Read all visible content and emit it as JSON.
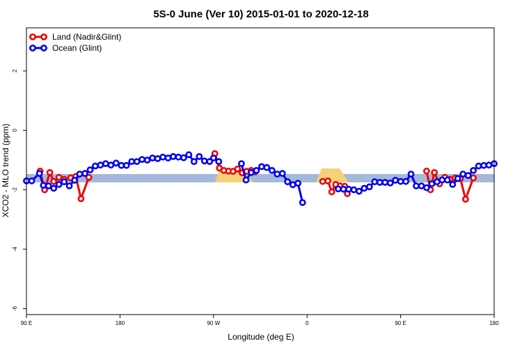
{
  "chart_data": {
    "type": "line",
    "title": "5S-0 June (Ver 10)   2015-01-01 to 2020-12-18",
    "xlabel": "Longitude (deg E)",
    "ylabel": "XCO2 - MLO trend (ppm)",
    "xlim": [
      90,
      450
    ],
    "ylim": [
      -6.2,
      3.45
    ],
    "x_ticks": [
      {
        "value": 90,
        "label": "90 E"
      },
      {
        "value": 162,
        "label": "180"
      },
      {
        "value": 234,
        "label": "90 W"
      },
      {
        "value": 306,
        "label": "0"
      },
      {
        "value": 378,
        "label": "90 E"
      },
      {
        "value": 450,
        "label": "180"
      }
    ],
    "y_ticks": [
      {
        "value": 2,
        "label": "2"
      },
      {
        "value": 0,
        "label": "0"
      },
      {
        "value": -2,
        "label": "-2"
      },
      {
        "value": -4,
        "label": "-4"
      },
      {
        "value": -6,
        "label": "-6"
      }
    ],
    "band": {
      "y_low": -1.75,
      "y_high": -1.47,
      "color": "#a4b9d9"
    },
    "land_patches": [
      {
        "x_start": 235,
        "x_peak_start": 239,
        "x_peak_end": 255,
        "x_end": 265,
        "color": "#f5d27a"
      },
      {
        "x_start": 313,
        "x_peak_start": 317,
        "x_peak_end": 331,
        "x_end": 338,
        "color": "#f5d27a"
      }
    ],
    "legend": {
      "position": "top-left"
    },
    "series": [
      {
        "name": "Land (Nadir&Glint)",
        "color": "#ee0000",
        "segments": [
          [
            [
              100.5,
              -1.37
            ],
            [
              104,
              -2.0
            ],
            [
              108,
              -1.42
            ],
            [
              111,
              -1.72
            ],
            [
              115,
              -1.58
            ],
            [
              119,
              -1.65
            ],
            [
              124,
              -1.6
            ],
            [
              128,
              -1.55
            ],
            [
              132,
              -2.3
            ],
            [
              138,
              -1.58
            ]
          ],
          [
            [
              235,
              -0.78
            ],
            [
              238.5,
              -1.27
            ],
            [
              242,
              -1.35
            ],
            [
              245.5,
              -1.37
            ],
            [
              249,
              -1.38
            ],
            [
              252.5,
              -1.3
            ],
            [
              256,
              -1.43
            ],
            [
              259.5,
              -1.38
            ],
            [
              263,
              -1.35
            ],
            [
              266,
              -1.4
            ]
          ],
          [
            [
              318,
              -1.72
            ],
            [
              322,
              -1.7
            ],
            [
              325,
              -2.07
            ],
            [
              328,
              -1.82
            ],
            [
              331.5,
              -1.87
            ],
            [
              335,
              -1.88
            ],
            [
              337,
              -2.13
            ]
          ],
          [
            [
              398,
              -1.37
            ],
            [
              401,
              -2.0
            ],
            [
              404,
              -1.42
            ],
            [
              408,
              -1.8
            ],
            [
              412,
              -1.58
            ],
            [
              416,
              -1.65
            ],
            [
              420,
              -1.6
            ],
            [
              424,
              -1.62
            ],
            [
              428,
              -2.32
            ],
            [
              434,
              -1.6
            ]
          ]
        ]
      },
      {
        "name": "Ocean (Glint)",
        "color": "#0000ee",
        "segments": [
          [
            [
              90,
              -1.7
            ],
            [
              94,
              -1.7
            ],
            [
              100,
              -1.45
            ],
            [
              103,
              -1.85
            ],
            [
              107,
              -1.87
            ],
            [
              111,
              -1.95
            ],
            [
              115,
              -1.82
            ],
            [
              119,
              -1.73
            ],
            [
              123,
              -1.87
            ],
            [
              127,
              -1.68
            ],
            [
              131,
              -1.47
            ],
            [
              135,
              -1.45
            ],
            [
              139,
              -1.33
            ],
            [
              143,
              -1.2
            ],
            [
              147,
              -1.17
            ],
            [
              151,
              -1.12
            ],
            [
              155,
              -1.17
            ],
            [
              159,
              -1.1
            ],
            [
              163,
              -1.18
            ],
            [
              167,
              -1.18
            ],
            [
              171,
              -1.05
            ],
            [
              175,
              -1.05
            ],
            [
              179,
              -0.98
            ],
            [
              183,
              -1.0
            ],
            [
              187,
              -0.93
            ],
            [
              191,
              -0.95
            ],
            [
              195,
              -0.9
            ],
            [
              199,
              -0.93
            ],
            [
              203,
              -0.88
            ],
            [
              207,
              -0.9
            ],
            [
              211,
              -0.92
            ],
            [
              215,
              -0.82
            ],
            [
              219,
              -1.05
            ],
            [
              223,
              -0.88
            ],
            [
              227,
              -1.03
            ],
            [
              231,
              -1.05
            ],
            [
              234,
              -0.93
            ],
            [
              238,
              -1.05
            ]
          ],
          [
            [
              255.5,
              -1.12
            ],
            [
              259,
              -1.67
            ],
            [
              263,
              -1.42
            ],
            [
              267,
              -1.35
            ],
            [
              271,
              -1.22
            ],
            [
              275,
              -1.25
            ],
            [
              279,
              -1.35
            ],
            [
              283,
              -1.47
            ],
            [
              287,
              -1.45
            ],
            [
              291,
              -1.73
            ],
            [
              295,
              -1.83
            ],
            [
              299,
              -1.78
            ],
            [
              302.5,
              -2.43
            ]
          ],
          [
            [
              330,
              -1.97
            ],
            [
              334,
              -1.98
            ],
            [
              338,
              -1.98
            ],
            [
              342,
              -2.0
            ],
            [
              346,
              -2.05
            ],
            [
              350,
              -1.95
            ],
            [
              354,
              -1.9
            ],
            [
              358,
              -1.73
            ],
            [
              362,
              -1.75
            ],
            [
              366,
              -1.75
            ],
            [
              370,
              -1.77
            ],
            [
              374,
              -1.68
            ],
            [
              378,
              -1.72
            ],
            [
              382,
              -1.72
            ],
            [
              386,
              -1.47
            ],
            [
              390,
              -1.87
            ],
            [
              394,
              -1.87
            ],
            [
              398,
              -1.93
            ],
            [
              402,
              -1.8
            ],
            [
              406,
              -1.73
            ],
            [
              410,
              -1.67
            ],
            [
              414,
              -1.67
            ],
            [
              418,
              -1.82
            ],
            [
              422,
              -1.62
            ],
            [
              426,
              -1.47
            ],
            [
              430,
              -1.52
            ],
            [
              434,
              -1.35
            ],
            [
              438,
              -1.2
            ],
            [
              442,
              -1.18
            ],
            [
              446,
              -1.17
            ],
            [
              450,
              -1.12
            ]
          ]
        ]
      }
    ]
  }
}
